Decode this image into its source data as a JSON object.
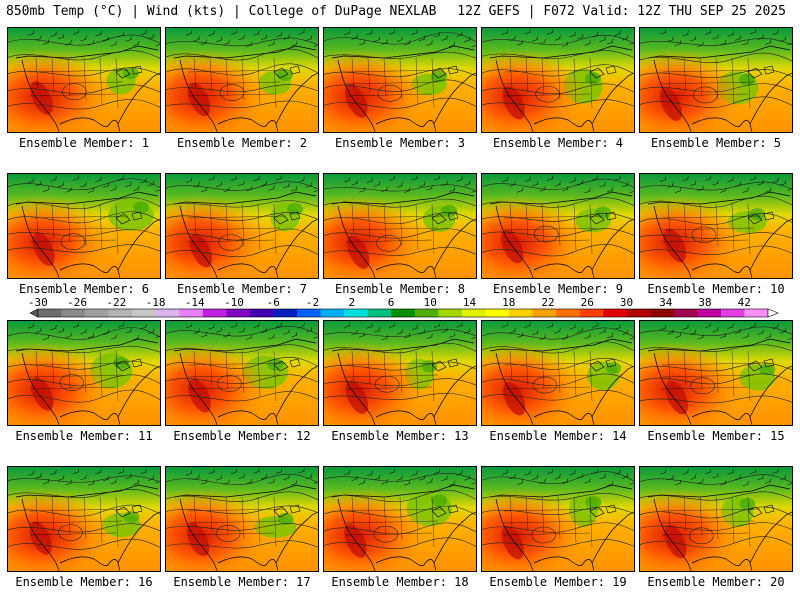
{
  "header": {
    "left": "850mb Temp (°C) | Wind (kts) | College of DuPage NEXLAB",
    "right": "12Z GEFS | F072 Valid: 12Z THU SEP 25 2025"
  },
  "panels": [
    {
      "label": "Ensemble Member: 1"
    },
    {
      "label": "Ensemble Member: 2"
    },
    {
      "label": "Ensemble Member: 3"
    },
    {
      "label": "Ensemble Member: 4"
    },
    {
      "label": "Ensemble Member: 5"
    },
    {
      "label": "Ensemble Member: 6"
    },
    {
      "label": "Ensemble Member: 7"
    },
    {
      "label": "Ensemble Member: 8"
    },
    {
      "label": "Ensemble Member: 9"
    },
    {
      "label": "Ensemble Member: 10"
    },
    {
      "label": "Ensemble Member: 11"
    },
    {
      "label": "Ensemble Member: 12"
    },
    {
      "label": "Ensemble Member: 13"
    },
    {
      "label": "Ensemble Member: 14"
    },
    {
      "label": "Ensemble Member: 15"
    },
    {
      "label": "Ensemble Member: 16"
    },
    {
      "label": "Ensemble Member: 17"
    },
    {
      "label": "Ensemble Member: 18"
    },
    {
      "label": "Ensemble Member: 19"
    },
    {
      "label": "Ensemble Member: 20"
    }
  ],
  "colorbar": {
    "ticks": [
      "-30",
      "-26",
      "-22",
      "-18",
      "-14",
      "-10",
      "-6",
      "-2",
      "2",
      "6",
      "10",
      "14",
      "18",
      "22",
      "26",
      "30",
      "34",
      "38",
      "42"
    ],
    "colors": [
      "#6e6e6e",
      "#8a8a8a",
      "#a0a0a0",
      "#b4b4b4",
      "#c8c8c8",
      "#d8b4f0",
      "#e680ff",
      "#c020e0",
      "#8000c0",
      "#4000b0",
      "#0020c0",
      "#0060ff",
      "#00b0ff",
      "#00e0e0",
      "#00c080",
      "#009000",
      "#50b000",
      "#a0d800",
      "#e0f000",
      "#ffff00",
      "#ffd000",
      "#ffa000",
      "#ff7000",
      "#ff4000",
      "#e00000",
      "#b00000",
      "#8c0000",
      "#a00050",
      "#c000a0",
      "#e040e0",
      "#ff90ff"
    ]
  }
}
